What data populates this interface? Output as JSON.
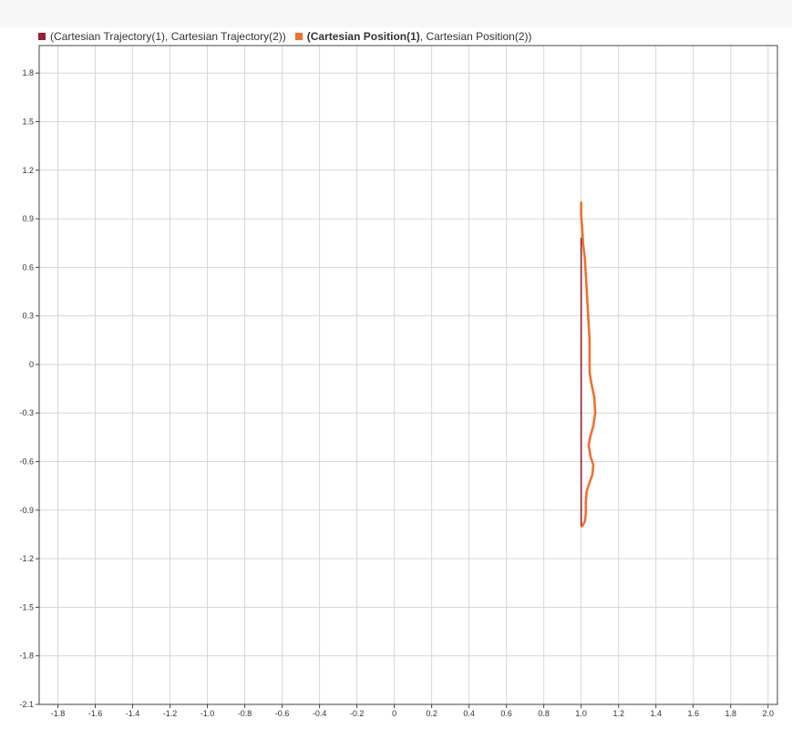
{
  "chart_data": {
    "type": "line",
    "title": "",
    "xlabel": "",
    "ylabel": "",
    "xlim": [
      -1.9,
      2.05
    ],
    "ylim": [
      -2.1,
      1.97
    ],
    "x_ticks": [
      -1.8,
      -1.6,
      -1.4,
      -1.2,
      -1.0,
      -0.8,
      -0.6,
      -0.4,
      -0.2,
      0,
      0.2,
      0.4,
      0.6,
      0.8,
      1.0,
      1.2,
      1.4,
      1.6,
      1.8,
      2.0
    ],
    "x_tick_labels": [
      "-1.8",
      "-1.6",
      "-1.4",
      "-1.2",
      "-1.0",
      "-0.8",
      "-0.6",
      "-0.4",
      "-0.2",
      "0",
      "0.2",
      "0.4",
      "0.6",
      "0.8",
      "1.0",
      "1.2",
      "1.4",
      "1.6",
      "1.8",
      "2.0"
    ],
    "y_ticks": [
      1.8,
      1.5,
      1.2,
      0.9,
      0.6,
      0.3,
      0,
      -0.3,
      -0.6,
      -0.9,
      -1.2,
      -1.5,
      -1.8,
      -2.1
    ],
    "y_tick_labels": [
      "1.8",
      "1.5",
      "1.2",
      "0.9",
      "0.6",
      "0.3",
      "0",
      "-0.3",
      "-0.6",
      "-0.9",
      "-1.2",
      "-1.5",
      "-1.8",
      "-2.1"
    ],
    "grid": true,
    "legend_position": "top-left",
    "series": [
      {
        "name": "(Cartesian Trajectory(1), Cartesian Trajectory(2))",
        "color": "#9b1c31",
        "points": [
          [
            1.0,
            0.78
          ],
          [
            1.0,
            0.4
          ],
          [
            1.0,
            0.0
          ],
          [
            1.0,
            -0.4
          ],
          [
            1.0,
            -0.8
          ],
          [
            1.0,
            -1.0
          ]
        ]
      },
      {
        "name": "(Cartesian Position(1), Cartesian Position(2))",
        "color": "#f0712c",
        "points": [
          [
            1.0,
            1.0
          ],
          [
            1.0,
            0.92
          ],
          [
            1.005,
            0.85
          ],
          [
            1.01,
            0.75
          ],
          [
            1.02,
            0.65
          ],
          [
            1.025,
            0.55
          ],
          [
            1.03,
            0.45
          ],
          [
            1.035,
            0.35
          ],
          [
            1.04,
            0.25
          ],
          [
            1.045,
            0.15
          ],
          [
            1.045,
            0.08
          ],
          [
            1.045,
            0.02
          ],
          [
            1.045,
            -0.05
          ],
          [
            1.055,
            -0.12
          ],
          [
            1.07,
            -0.2
          ],
          [
            1.075,
            -0.3
          ],
          [
            1.065,
            -0.38
          ],
          [
            1.05,
            -0.44
          ],
          [
            1.04,
            -0.5
          ],
          [
            1.05,
            -0.57
          ],
          [
            1.065,
            -0.62
          ],
          [
            1.06,
            -0.68
          ],
          [
            1.045,
            -0.73
          ],
          [
            1.03,
            -0.78
          ],
          [
            1.025,
            -0.85
          ],
          [
            1.025,
            -0.92
          ],
          [
            1.02,
            -0.97
          ],
          [
            1.005,
            -1.0
          ]
        ]
      }
    ]
  }
}
